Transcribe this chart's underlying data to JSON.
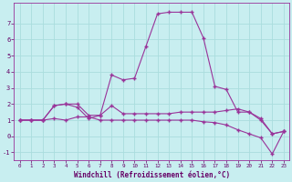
{
  "xlabel": "Windchill (Refroidissement éolien,°C)",
  "bg_color": "#c8eef0",
  "line_color": "#993399",
  "grid_color": "#aadddd",
  "xlim": [
    -0.5,
    23.5
  ],
  "ylim": [
    -1.5,
    8.3
  ],
  "yticks": [
    -1,
    0,
    1,
    2,
    3,
    4,
    5,
    6,
    7
  ],
  "xticks": [
    0,
    1,
    2,
    3,
    4,
    5,
    6,
    7,
    8,
    9,
    10,
    11,
    12,
    13,
    14,
    15,
    16,
    17,
    18,
    19,
    20,
    21,
    22,
    23
  ],
  "line1_x": [
    0,
    1,
    2,
    3,
    4,
    5,
    6,
    7,
    8,
    9,
    10,
    11,
    12,
    13,
    14,
    15,
    16,
    17,
    18,
    19,
    20,
    21,
    22,
    23
  ],
  "line1_y": [
    1.0,
    1.0,
    1.0,
    1.9,
    2.0,
    1.8,
    1.1,
    1.3,
    3.8,
    3.5,
    3.6,
    5.6,
    7.6,
    7.7,
    7.7,
    7.7,
    6.1,
    3.1,
    2.9,
    1.5,
    1.5,
    1.0,
    0.15,
    0.3
  ],
  "line2_x": [
    0,
    1,
    2,
    3,
    4,
    5,
    6,
    7,
    8,
    9,
    10,
    11,
    12,
    13,
    14,
    15,
    16,
    17,
    18,
    19,
    20,
    21,
    22,
    23
  ],
  "line2_y": [
    1.0,
    1.0,
    1.0,
    1.9,
    2.0,
    2.0,
    1.3,
    1.3,
    1.9,
    1.4,
    1.4,
    1.4,
    1.4,
    1.4,
    1.5,
    1.5,
    1.5,
    1.5,
    1.6,
    1.7,
    1.5,
    1.1,
    0.15,
    0.3
  ],
  "line3_x": [
    0,
    1,
    2,
    3,
    4,
    5,
    6,
    7,
    8,
    9,
    10,
    11,
    12,
    13,
    14,
    15,
    16,
    17,
    18,
    19,
    20,
    21,
    22,
    23
  ],
  "line3_y": [
    1.0,
    1.0,
    1.0,
    1.1,
    1.0,
    1.2,
    1.2,
    1.0,
    1.0,
    1.0,
    1.0,
    1.0,
    1.0,
    1.0,
    1.0,
    1.0,
    0.9,
    0.85,
    0.7,
    0.4,
    0.15,
    -0.1,
    -1.1,
    0.3
  ]
}
